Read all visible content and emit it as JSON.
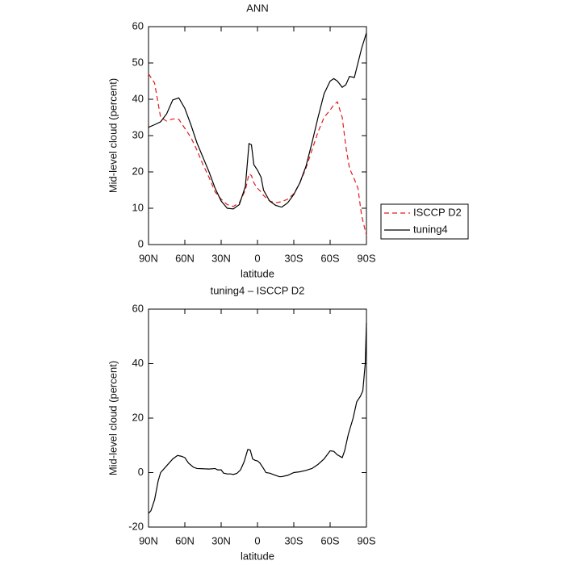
{
  "chart_data": [
    {
      "type": "line",
      "title": "ANN",
      "xlabel": "latitude",
      "ylabel": "Mid-level cloud (percent)",
      "x": [
        90,
        85,
        80,
        75,
        70,
        65,
        60,
        55,
        50,
        45,
        40,
        35,
        30,
        25,
        20,
        15,
        10,
        7,
        5,
        3,
        0,
        -3,
        -5,
        -10,
        -15,
        -20,
        -25,
        -30,
        -35,
        -40,
        -45,
        -50,
        -55,
        -60,
        -63,
        -66,
        -70,
        -73,
        -76,
        -80,
        -83,
        -86,
        -90
      ],
      "series": [
        {
          "name": "ISCCP D2",
          "color": "#e41a1c",
          "style": "dashed",
          "values": [
            47,
            44.5,
            35,
            34,
            34.6,
            34.5,
            32,
            29.5,
            26,
            22,
            18.5,
            14.5,
            12.5,
            11,
            10.5,
            11.5,
            15,
            19.5,
            19,
            17,
            15.5,
            14.5,
            13.5,
            12,
            11.5,
            11.8,
            12.5,
            14,
            17,
            21,
            26,
            31,
            35,
            37,
            38.5,
            39.3,
            35,
            27,
            21,
            18,
            15.5,
            8,
            2.5
          ]
        },
        {
          "name": "tuning4",
          "color": "#000000",
          "style": "solid",
          "values": [
            32.3,
            33,
            33.8,
            36,
            39.8,
            40.4,
            37.5,
            33,
            28,
            24,
            20,
            15.5,
            12,
            10,
            9.8,
            11,
            16,
            27.8,
            27.5,
            22,
            20.5,
            18.5,
            15,
            12,
            10.8,
            10.3,
            11.5,
            13.8,
            17,
            21.5,
            28,
            35,
            41.5,
            45,
            45.7,
            45,
            43.3,
            44,
            46.3,
            46,
            50,
            54,
            58.3
          ]
        }
      ],
      "xlim": [
        90,
        -90
      ],
      "xticks": [
        {
          "value": 90,
          "label": "90N"
        },
        {
          "value": 60,
          "label": "60N"
        },
        {
          "value": 30,
          "label": "30N"
        },
        0,
        {
          "value": -30,
          "label": "30S"
        },
        {
          "value": -60,
          "label": "60S"
        },
        {
          "value": -90,
          "label": "90S"
        }
      ],
      "ylim": [
        0,
        60
      ],
      "yticks": [
        0,
        10,
        20,
        30,
        40,
        50,
        60
      ],
      "legend": "right"
    },
    {
      "type": "line",
      "title": "tuning4 – ISCCP D2",
      "xlabel": "latitude",
      "ylabel": "Mid-level cloud (percent)",
      "x": [
        90,
        88,
        85,
        82,
        80,
        77,
        73,
        70,
        66,
        63,
        60,
        57,
        53,
        50,
        45,
        40,
        35,
        33,
        30,
        28,
        25,
        22,
        20,
        17,
        14,
        11,
        8,
        6,
        4,
        2,
        0,
        -2,
        -5,
        -7,
        -10,
        -15,
        -18,
        -20,
        -25,
        -30,
        -35,
        -40,
        -45,
        -50,
        -55,
        -60,
        -63,
        -66,
        -70,
        -72,
        -75,
        -79,
        -82,
        -85,
        -87,
        -89,
        -90
      ],
      "series": [
        {
          "color": "#000000",
          "style": "solid",
          "values": [
            -15,
            -14,
            -10,
            -3,
            0,
            1.5,
            3.5,
            5,
            6.3,
            6,
            5.5,
            3.5,
            2,
            1.5,
            1.4,
            1.3,
            1.5,
            1,
            1,
            -0.2,
            -0.5,
            -0.5,
            -0.7,
            -0.3,
            1,
            4,
            8.5,
            8.3,
            5,
            4.5,
            4.3,
            3.5,
            1.5,
            0,
            -0.2,
            -1,
            -1.5,
            -1.5,
            -1,
            0,
            0.3,
            0.8,
            1.5,
            3,
            5,
            8,
            7.8,
            6.5,
            5.5,
            8,
            14,
            20,
            26,
            28,
            30,
            40,
            55
          ]
        }
      ],
      "xlim": [
        90,
        -90
      ],
      "xticks": [
        {
          "value": 90,
          "label": "90N"
        },
        {
          "value": 60,
          "label": "60N"
        },
        {
          "value": 30,
          "label": "30N"
        },
        0,
        {
          "value": -30,
          "label": "30S"
        },
        {
          "value": -60,
          "label": "60S"
        },
        {
          "value": -90,
          "label": "90S"
        }
      ],
      "ylim": [
        -20,
        60
      ],
      "yticks": [
        -20,
        0,
        20,
        40,
        60
      ]
    }
  ]
}
